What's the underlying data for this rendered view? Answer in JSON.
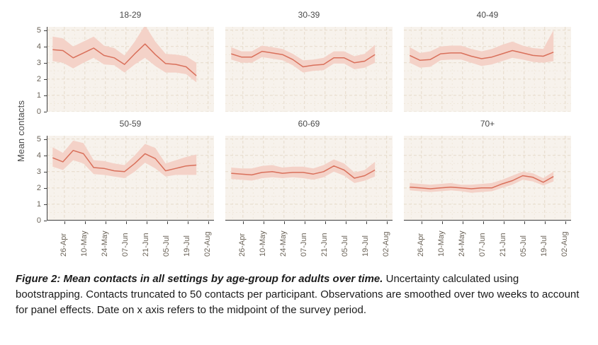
{
  "figure": {
    "y_axis_label": "Mean contacts",
    "colors": {
      "line": "#d9705b",
      "band": "#f4d2c8",
      "panel_bg": "#f7f2ec",
      "grid_major": "#e5dac9",
      "grid_minor": "#f0e8db",
      "axis": "#3f3f3f",
      "tick_text": "#6b6358",
      "title_text": "#4a4a4a"
    }
  },
  "chart_data": {
    "type": "line",
    "facet_layout": "2 rows x 3 cols",
    "ylabel": "Mean contacts",
    "ylim": [
      0,
      5.2
    ],
    "y_ticks": [
      0,
      1,
      2,
      3,
      4,
      5
    ],
    "y_minor": [
      0.5,
      1.5,
      2.5,
      3.5,
      4.5
    ],
    "x_domain_days": [
      -6,
      108
    ],
    "x_tick_labels": [
      "26-Apr",
      "10-May",
      "24-May",
      "07-Jun",
      "21-Jun",
      "05-Jul",
      "19-Jul",
      "02-Aug"
    ],
    "x_tick_days": [
      6,
      20,
      34,
      48,
      62,
      76,
      90,
      104
    ],
    "x_minor_days": [
      -1,
      13,
      27,
      41,
      55,
      69,
      83,
      97
    ],
    "x_days": [
      -2,
      5,
      12,
      19,
      26,
      33,
      40,
      47,
      54,
      61,
      68,
      75,
      82,
      89,
      96
    ],
    "grid": "dashed",
    "legend": "none",
    "facets": [
      {
        "title": "18-29",
        "mean": [
          3.8,
          3.75,
          3.3,
          3.6,
          3.9,
          3.45,
          3.3,
          2.9,
          3.55,
          4.15,
          3.5,
          2.95,
          2.9,
          2.75,
          2.2
        ],
        "lower": [
          3.1,
          3.0,
          2.65,
          3.0,
          3.3,
          2.9,
          2.85,
          2.4,
          2.9,
          3.3,
          2.8,
          2.4,
          2.4,
          2.3,
          1.8
        ],
        "upper": [
          4.6,
          4.5,
          4.0,
          4.3,
          4.6,
          4.05,
          3.9,
          3.45,
          4.3,
          5.3,
          4.3,
          3.55,
          3.5,
          3.4,
          3.0
        ]
      },
      {
        "title": "30-39",
        "mean": [
          3.55,
          3.35,
          3.35,
          3.7,
          3.6,
          3.5,
          3.2,
          2.75,
          2.85,
          2.9,
          3.3,
          3.3,
          3.0,
          3.1,
          3.5
        ],
        "lower": [
          3.2,
          3.0,
          3.0,
          3.35,
          3.25,
          3.15,
          2.85,
          2.4,
          2.5,
          2.55,
          2.95,
          2.95,
          2.6,
          2.7,
          3.0
        ],
        "upper": [
          3.95,
          3.7,
          3.7,
          4.05,
          3.95,
          3.85,
          3.55,
          3.15,
          3.2,
          3.3,
          3.7,
          3.7,
          3.4,
          3.55,
          4.1
        ]
      },
      {
        "title": "40-49",
        "mean": [
          3.45,
          3.15,
          3.2,
          3.55,
          3.6,
          3.6,
          3.4,
          3.25,
          3.35,
          3.55,
          3.75,
          3.6,
          3.45,
          3.4,
          3.65
        ],
        "lower": [
          3.0,
          2.7,
          2.75,
          3.15,
          3.2,
          3.2,
          3.0,
          2.8,
          2.9,
          3.1,
          3.3,
          3.2,
          3.05,
          3.0,
          3.1
        ],
        "upper": [
          3.95,
          3.6,
          3.7,
          4.0,
          4.05,
          4.05,
          3.85,
          3.7,
          3.85,
          4.1,
          4.3,
          4.05,
          3.9,
          3.85,
          5.0
        ]
      },
      {
        "title": "50-59",
        "mean": [
          3.85,
          3.6,
          4.3,
          4.1,
          3.25,
          3.2,
          3.05,
          3.0,
          3.5,
          4.1,
          3.8,
          3.05,
          3.2,
          3.35,
          3.4
        ],
        "lower": [
          3.3,
          3.1,
          3.7,
          3.5,
          2.85,
          2.8,
          2.7,
          2.6,
          3.0,
          3.55,
          3.2,
          2.7,
          2.8,
          2.8,
          2.8
        ],
        "upper": [
          4.5,
          4.15,
          4.9,
          4.75,
          3.7,
          3.65,
          3.5,
          3.4,
          4.0,
          4.7,
          4.45,
          3.5,
          3.7,
          3.9,
          4.05
        ]
      },
      {
        "title": "60-69",
        "mean": [
          2.9,
          2.85,
          2.8,
          2.95,
          3.0,
          2.9,
          2.95,
          2.95,
          2.85,
          3.0,
          3.35,
          3.1,
          2.6,
          2.75,
          3.1
        ],
        "lower": [
          2.55,
          2.5,
          2.45,
          2.6,
          2.65,
          2.6,
          2.65,
          2.6,
          2.5,
          2.65,
          3.0,
          2.75,
          2.3,
          2.45,
          2.7
        ],
        "upper": [
          3.25,
          3.2,
          3.2,
          3.35,
          3.4,
          3.25,
          3.3,
          3.3,
          3.2,
          3.4,
          3.75,
          3.5,
          2.95,
          3.1,
          3.6
        ]
      },
      {
        "title": "70+",
        "mean": [
          2.05,
          2.0,
          1.95,
          2.0,
          2.05,
          2.0,
          1.95,
          2.0,
          2.0,
          2.25,
          2.45,
          2.75,
          2.65,
          2.35,
          2.7
        ],
        "lower": [
          1.85,
          1.8,
          1.75,
          1.8,
          1.85,
          1.8,
          1.7,
          1.75,
          1.8,
          2.0,
          2.2,
          2.5,
          2.4,
          2.15,
          2.4
        ],
        "upper": [
          2.3,
          2.25,
          2.2,
          2.25,
          2.3,
          2.2,
          2.2,
          2.25,
          2.3,
          2.5,
          2.75,
          3.0,
          2.9,
          2.6,
          3.0
        ]
      }
    ]
  },
  "caption": {
    "bold": "Figure 2: Mean contacts in all settings by age-group for adults over time.",
    "normal": " Uncertainty calculated using bootstrapping. Contacts truncated to 50 contacts per participant. Observations are smoothed over two weeks to account for panel effects. Date on x axis refers to the midpoint of the survey period."
  }
}
